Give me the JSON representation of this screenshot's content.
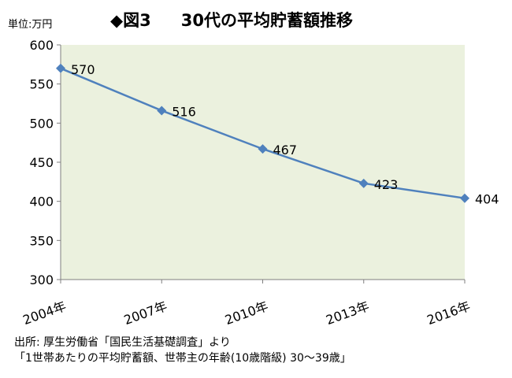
{
  "unit_label": "単位:万円",
  "title_marker": "◆図3",
  "title_text": "30代の平均貯蓄額推移",
  "source_line1": "出所: 厚生労働省「国民生活基礎調査」より",
  "source_line2": "「1世帯あたりの平均貯蓄額、世帯主の年齢(10歳階級) 30〜39歳」",
  "colors": {
    "plot_bg": "#ebf1de",
    "line": "#4f81bd",
    "marker": "#4f81bd"
  },
  "chart_data": {
    "type": "line",
    "categories": [
      "2004年",
      "2007年",
      "2010年",
      "2013年",
      "2016年"
    ],
    "series": [
      {
        "values": [
          570,
          516,
          467,
          423,
          404
        ]
      }
    ],
    "data_labels": [
      "570",
      "516",
      "467",
      "423",
      "404"
    ],
    "ylim": [
      300,
      600
    ],
    "yticks": [
      300,
      350,
      400,
      450,
      500,
      550,
      600
    ],
    "grid": false,
    "legend": "none"
  }
}
